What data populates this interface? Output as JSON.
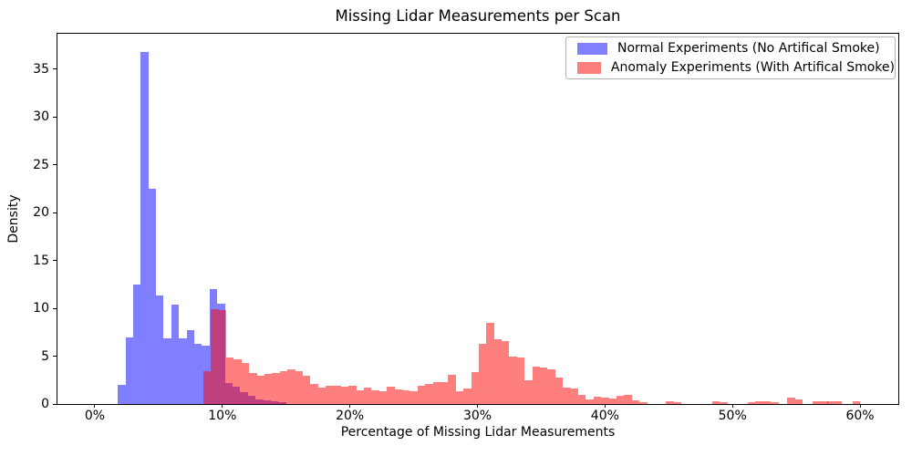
{
  "chart_data": {
    "type": "bar",
    "subtype": "overlapping-histograms",
    "title": "Missing Lidar Measurements per Scan",
    "xlabel": "Percentage of Missing Lidar Measurements",
    "ylabel": "Density",
    "xlim": [
      -2.93,
      63.0
    ],
    "ylim": [
      0,
      38.67
    ],
    "grid": false,
    "legend_position": "upper right",
    "bin_width_pct": 0.6,
    "x_ticks": [
      {
        "value": 0,
        "label": "0%"
      },
      {
        "value": 10,
        "label": "10%"
      },
      {
        "value": 20,
        "label": "20%"
      },
      {
        "value": 30,
        "label": "30%"
      },
      {
        "value": 40,
        "label": "40%"
      },
      {
        "value": 50,
        "label": "50%"
      },
      {
        "value": 60,
        "label": "60%"
      }
    ],
    "y_ticks": [
      {
        "value": 0,
        "label": "0"
      },
      {
        "value": 5,
        "label": "5"
      },
      {
        "value": 10,
        "label": "10"
      },
      {
        "value": 15,
        "label": "15"
      },
      {
        "value": 20,
        "label": "20"
      },
      {
        "value": 25,
        "label": "25"
      },
      {
        "value": 30,
        "label": "30"
      },
      {
        "value": 35,
        "label": "35"
      }
    ],
    "colors": {
      "normal_fill": "rgba(0,0,255,0.5)",
      "anomaly_fill": "rgba(255,0,0,0.5)",
      "overlap_seen": "#bf4080",
      "normal_seen": "#8080ff",
      "anomaly_seen": "#ff8080"
    },
    "series": [
      {
        "name": "Normal Experiments (No Artifical Smoke)",
        "color": "rgba(0,0,255,0.5)",
        "bars": [
          [
            1.8,
            2.0
          ],
          [
            2.4,
            7.0
          ],
          [
            3.0,
            12.45
          ],
          [
            3.6,
            36.8
          ],
          [
            4.2,
            22.5
          ],
          [
            4.8,
            11.3
          ],
          [
            5.4,
            6.9
          ],
          [
            6.0,
            10.4
          ],
          [
            6.6,
            6.9
          ],
          [
            7.2,
            7.7
          ],
          [
            7.8,
            6.3
          ],
          [
            8.4,
            6.1
          ],
          [
            9.0,
            12.0
          ],
          [
            9.6,
            10.5
          ],
          [
            10.2,
            2.2
          ],
          [
            10.8,
            1.8
          ],
          [
            11.4,
            1.2
          ],
          [
            12.0,
            0.85
          ],
          [
            12.6,
            0.5
          ],
          [
            13.2,
            0.4
          ],
          [
            13.8,
            0.25
          ],
          [
            14.4,
            0.15
          ]
        ]
      },
      {
        "name": "Anomaly Experiments (With Artifical Smoke)",
        "color": "rgba(255,0,0,0.5)",
        "bars": [
          [
            8.5,
            3.4
          ],
          [
            9.1,
            9.9
          ],
          [
            9.7,
            9.8
          ],
          [
            10.3,
            4.9
          ],
          [
            10.9,
            4.65
          ],
          [
            11.5,
            4.25
          ],
          [
            12.1,
            3.2
          ],
          [
            12.7,
            3.0
          ],
          [
            13.3,
            3.1
          ],
          [
            13.9,
            3.2
          ],
          [
            14.5,
            3.45
          ],
          [
            15.1,
            3.65
          ],
          [
            15.7,
            3.45
          ],
          [
            16.3,
            3.0
          ],
          [
            16.9,
            2.1
          ],
          [
            17.5,
            1.7
          ],
          [
            18.1,
            1.9
          ],
          [
            18.7,
            1.95
          ],
          [
            19.3,
            1.85
          ],
          [
            19.9,
            1.9
          ],
          [
            20.5,
            1.45
          ],
          [
            21.1,
            1.7
          ],
          [
            21.7,
            1.45
          ],
          [
            22.3,
            1.3
          ],
          [
            22.9,
            1.8
          ],
          [
            23.5,
            1.55
          ],
          [
            24.1,
            1.45
          ],
          [
            24.7,
            1.3
          ],
          [
            25.3,
            1.95
          ],
          [
            25.9,
            2.1
          ],
          [
            26.5,
            2.25
          ],
          [
            27.1,
            2.3
          ],
          [
            27.7,
            3.05
          ],
          [
            28.3,
            1.3
          ],
          [
            28.9,
            1.6
          ],
          [
            29.5,
            3.3
          ],
          [
            30.1,
            6.3
          ],
          [
            30.7,
            8.5
          ],
          [
            31.3,
            6.8
          ],
          [
            31.9,
            6.6
          ],
          [
            32.5,
            5.0
          ],
          [
            33.1,
            4.9
          ],
          [
            33.7,
            2.5
          ],
          [
            34.3,
            3.9
          ],
          [
            34.9,
            3.8
          ],
          [
            35.5,
            3.6
          ],
          [
            36.1,
            2.8
          ],
          [
            36.7,
            1.7
          ],
          [
            37.3,
            1.6
          ],
          [
            37.9,
            0.95
          ],
          [
            38.5,
            0.5
          ],
          [
            39.1,
            0.8
          ],
          [
            39.7,
            0.65
          ],
          [
            40.3,
            0.55
          ],
          [
            40.9,
            0.85
          ],
          [
            41.5,
            0.95
          ],
          [
            42.1,
            0.35
          ],
          [
            42.7,
            0.2
          ],
          [
            44.8,
            0.25
          ],
          [
            45.4,
            0.2
          ],
          [
            48.4,
            0.25
          ],
          [
            49.0,
            0.2
          ],
          [
            51.2,
            0.2
          ],
          [
            51.8,
            0.3
          ],
          [
            52.4,
            0.3
          ],
          [
            53.0,
            0.2
          ],
          [
            54.3,
            0.65
          ],
          [
            54.9,
            0.45
          ],
          [
            56.3,
            0.25
          ],
          [
            56.9,
            0.25
          ],
          [
            57.4,
            0.3
          ],
          [
            58.0,
            0.3
          ],
          [
            59.4,
            0.3
          ]
        ]
      }
    ]
  }
}
